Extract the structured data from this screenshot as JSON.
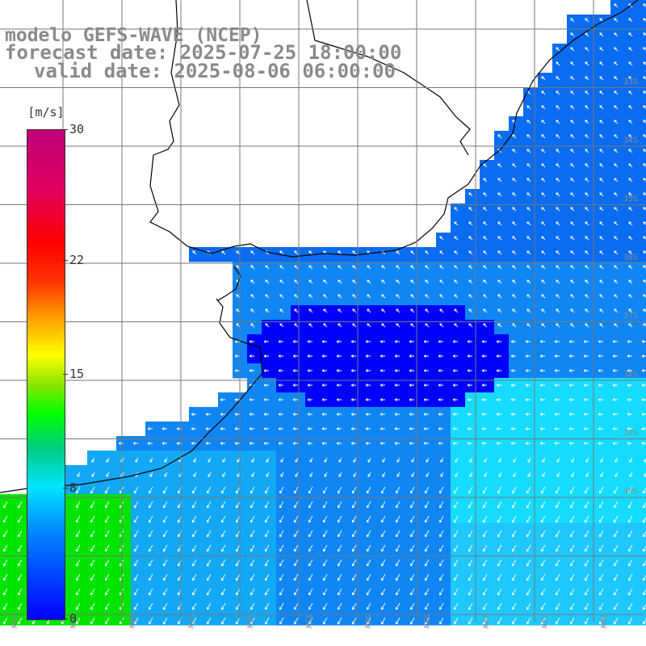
{
  "header": {
    "model_line": "modelo GEFS-WAVE (NCEP)",
    "forecast_line": "forecast date: 2025-07-25 18:00:00",
    "valid_line": "valid date: 2025-08-06 06:00:00"
  },
  "colorbar": {
    "unit": "[m/s]",
    "ticks": [
      "30",
      "22",
      "15",
      "8",
      "0"
    ],
    "tick_values": [
      30,
      22,
      15,
      8,
      0
    ],
    "range": [
      0,
      30
    ]
  },
  "map": {
    "grid_lon_labels": [
      "60W",
      "59W",
      "58W",
      "57W",
      "56W",
      "55W",
      "54W",
      "53W",
      "52W",
      "51W",
      "50W"
    ],
    "grid_lat_labels": [
      "33S",
      "34S",
      "35S",
      "36S",
      "37S",
      "38S",
      "39S",
      "40S"
    ],
    "colors": {
      "land": "#ffffff",
      "coast": "#000000",
      "grid": "#777777",
      "strong_blue": "#0000ff",
      "mid_blue": "#0a6cf0",
      "cyan": "#15dcff",
      "green": "#00e400",
      "arrow": "#ffffff"
    }
  }
}
